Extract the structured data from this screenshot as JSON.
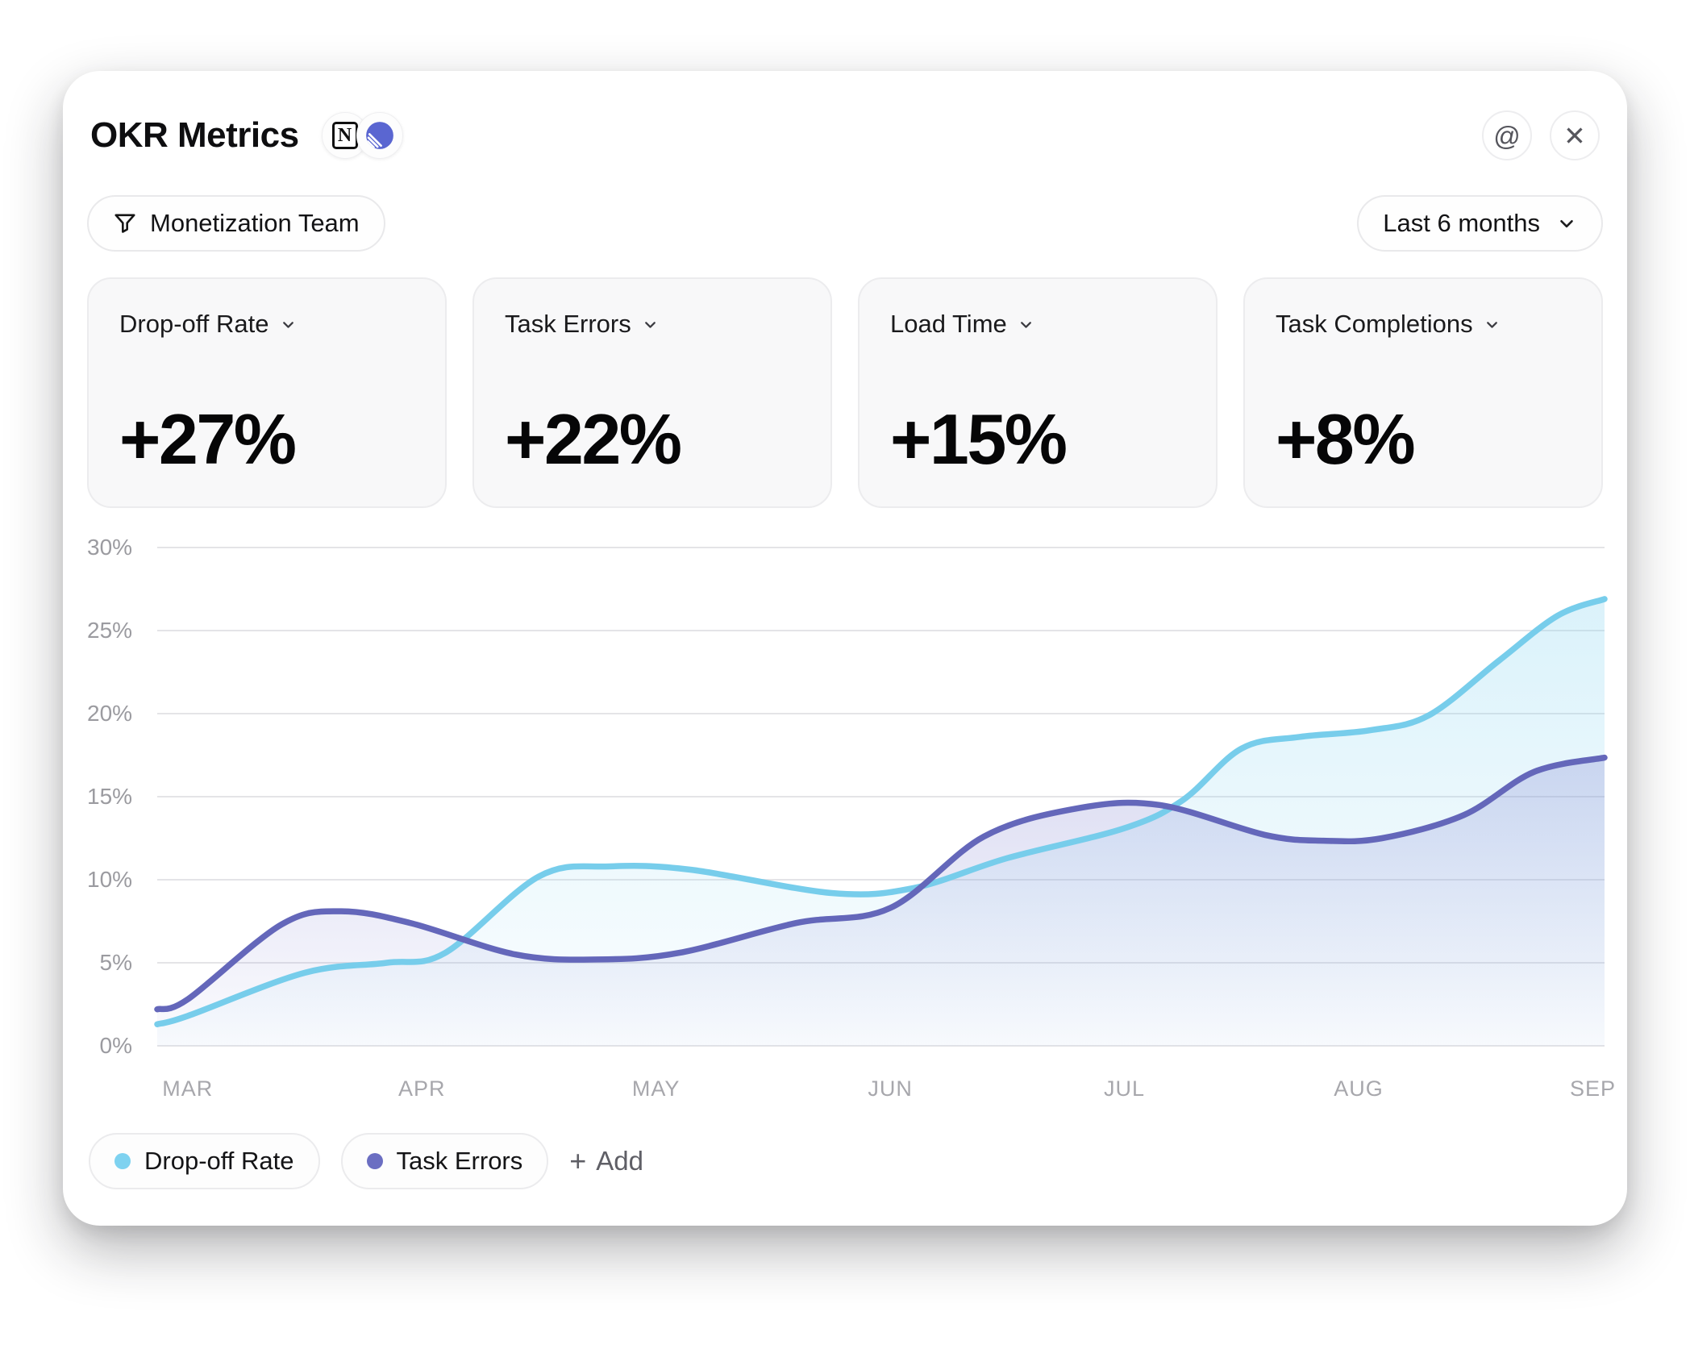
{
  "header": {
    "title": "OKR Metrics",
    "badges": [
      {
        "name": "notion-icon",
        "glyph": "N"
      },
      {
        "name": "linear-icon"
      }
    ],
    "actions": [
      {
        "name": "mention",
        "glyph": "@"
      },
      {
        "name": "close",
        "glyph": "✕"
      }
    ]
  },
  "toolbar": {
    "filter_label": "Monetization Team",
    "range_label": "Last 6 months"
  },
  "metric_cards": [
    {
      "label": "Drop-off Rate",
      "value": "+27%"
    },
    {
      "label": "Task Errors",
      "value": "+22%"
    },
    {
      "label": "Load Time",
      "value": "+15%"
    },
    {
      "label": "Task Completions",
      "value": "+8%"
    }
  ],
  "legend": {
    "items": [
      {
        "label": "Drop-off Rate",
        "color": "#7ed2f0"
      },
      {
        "label": "Task Errors",
        "color": "#6b6ec2"
      }
    ],
    "add_label": "Add",
    "add_glyph": "+"
  },
  "chart_data": {
    "type": "area",
    "title": "OKR Metrics over last 6 months",
    "xlabel": "",
    "ylabel": "",
    "x_labels": [
      "MAR",
      "APR",
      "MAY",
      "JUN",
      "JUL",
      "AUG",
      "SEP"
    ],
    "y_ticks": [
      0,
      5,
      10,
      15,
      20,
      25,
      30
    ],
    "y_tick_suffix": "%",
    "ylim": [
      0,
      30
    ],
    "x_domain": [
      -0.13,
      6.05
    ],
    "grid": true,
    "legend_position": "bottom",
    "series": [
      {
        "name": "Drop-off Rate",
        "color": "#77cdeb",
        "fill_top": "rgba(134,212,240,0.30)",
        "fill_bottom": "rgba(134,212,240,0.03)",
        "monthly_values": {
          "MAR": 1.8,
          "APR": 5.3,
          "MAY": 10.7,
          "JUN": 9.4,
          "JUL": 13.1,
          "AUG": 18.9,
          "SEP": 26.9
        },
        "points": [
          [
            -0.13,
            1.3
          ],
          [
            0,
            1.8
          ],
          [
            0.5,
            4.4
          ],
          [
            0.85,
            5.0
          ],
          [
            1.1,
            5.6
          ],
          [
            1.5,
            10.2
          ],
          [
            1.8,
            10.8
          ],
          [
            2.15,
            10.6
          ],
          [
            2.75,
            9.2
          ],
          [
            3.1,
            9.5
          ],
          [
            3.5,
            11.3
          ],
          [
            4,
            13.1
          ],
          [
            4.25,
            14.8
          ],
          [
            4.5,
            17.9
          ],
          [
            4.75,
            18.6
          ],
          [
            5.05,
            19.0
          ],
          [
            5.3,
            19.9
          ],
          [
            5.6,
            23.2
          ],
          [
            5.85,
            25.9
          ],
          [
            6.05,
            26.9
          ]
        ]
      },
      {
        "name": "Task Errors",
        "color": "#6467ba",
        "fill_top": "rgba(126,128,209,0.28)",
        "fill_bottom": "rgba(126,128,209,0.03)",
        "monthly_values": {
          "MAR": 2.8,
          "APR": 7.2,
          "MAY": 5.5,
          "JUN": 8.3,
          "JUL": 14.4,
          "AUG": 12.4,
          "SEP": 17.3
        },
        "points": [
          [
            -0.13,
            2.2
          ],
          [
            0,
            2.8
          ],
          [
            0.4,
            7.3
          ],
          [
            0.65,
            8.1
          ],
          [
            0.95,
            7.4
          ],
          [
            1.4,
            5.5
          ],
          [
            1.75,
            5.2
          ],
          [
            2.1,
            5.6
          ],
          [
            2.6,
            7.4
          ],
          [
            3.0,
            8.3
          ],
          [
            3.4,
            12.6
          ],
          [
            3.8,
            14.3
          ],
          [
            4.15,
            14.5
          ],
          [
            4.6,
            12.7
          ],
          [
            4.85,
            12.35
          ],
          [
            5.1,
            12.5
          ],
          [
            5.45,
            13.9
          ],
          [
            5.75,
            16.5
          ],
          [
            6.05,
            17.35
          ]
        ]
      }
    ]
  }
}
